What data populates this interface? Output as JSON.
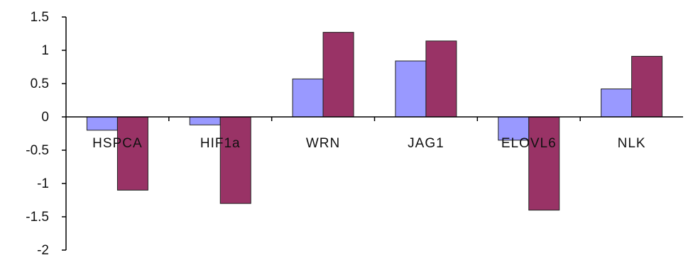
{
  "chart_data": {
    "type": "bar",
    "categories": [
      "HSPCA",
      "HIF1a",
      "WRN",
      "JAG1",
      "ELOVL6",
      "NLK"
    ],
    "series": [
      {
        "values": [
          -0.2,
          -0.12,
          0.57,
          0.84,
          -0.35,
          0.42
        ],
        "color": "#9999ff"
      },
      {
        "values": [
          -1.1,
          -1.3,
          1.27,
          1.14,
          -1.4,
          0.91
        ],
        "color": "#993366"
      }
    ],
    "yticks": [
      "1.5",
      "1",
      "0.5",
      "0",
      "-0.5",
      "-1",
      "-1.5",
      "-2"
    ],
    "ylim": [
      -2,
      1.5
    ],
    "grid": false,
    "legend": "none"
  }
}
